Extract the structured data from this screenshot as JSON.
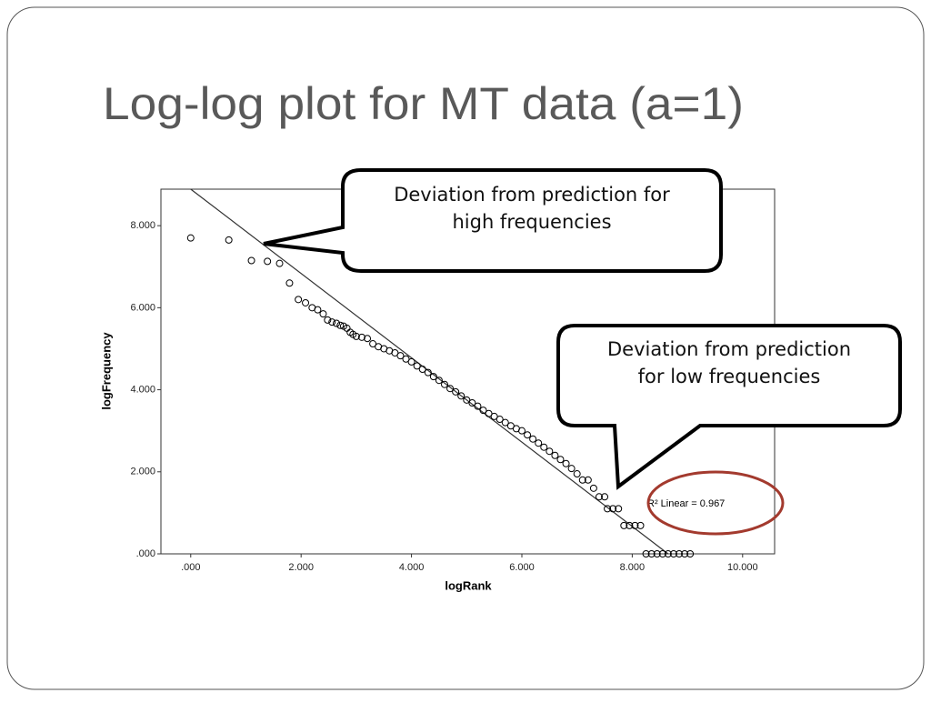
{
  "slide_title": "Log-log plot for MT data (a=1)",
  "callouts": [
    {
      "lines": [
        "Deviation from prediction for",
        "high frequencies"
      ]
    },
    {
      "lines": [
        "Deviation from prediction",
        "for low frequencies"
      ]
    }
  ],
  "chart_data": {
    "type": "scatter",
    "x_label": "logRank",
    "y_label": "logFrequency",
    "fit_label": "R² Linear = 0.967",
    "color": "#000000",
    "xlim": [
      -0.54,
      10.58
    ],
    "ylim": [
      0,
      8.89
    ],
    "xticks": [
      {
        "value": 0,
        "label": ".000"
      },
      {
        "value": 2,
        "label": "2.000"
      },
      {
        "value": 4,
        "label": "4.000"
      },
      {
        "value": 6,
        "label": "6.000"
      },
      {
        "value": 8,
        "label": "8.000"
      },
      {
        "value": 10,
        "label": "10.000"
      }
    ],
    "yticks": [
      {
        "value": 0,
        "label": ".000"
      },
      {
        "value": 2,
        "label": "2.000"
      },
      {
        "value": 4,
        "label": "4.000"
      },
      {
        "value": 6,
        "label": "6.000"
      },
      {
        "value": 8,
        "label": "8.000"
      }
    ],
    "fit_line": {
      "x": [
        0,
        8.65
      ],
      "y": [
        8.89,
        0
      ]
    },
    "x": [
      0,
      0.69,
      1.1,
      1.39,
      1.61,
      1.79,
      1.95,
      2.08,
      2.2,
      2.3,
      2.4,
      2.48,
      2.56,
      2.64,
      2.71,
      2.77,
      2.83,
      2.89,
      2.94,
      3.0,
      3.1,
      3.2,
      3.3,
      3.4,
      3.5,
      3.6,
      3.7,
      3.8,
      3.9,
      4.0,
      4.1,
      4.2,
      4.3,
      4.4,
      4.5,
      4.6,
      4.7,
      4.8,
      4.9,
      5.0,
      5.1,
      5.2,
      5.3,
      5.4,
      5.5,
      5.6,
      5.7,
      5.8,
      5.9,
      6.0,
      6.1,
      6.2,
      6.3,
      6.4,
      6.5,
      6.6,
      6.7,
      6.8,
      6.9,
      7.0,
      7.1,
      7.2,
      7.3,
      7.4,
      7.5,
      7.55,
      7.65,
      7.75,
      7.85,
      7.95,
      8.05,
      8.15,
      8.25,
      8.35,
      8.45,
      8.55,
      8.65,
      8.75,
      8.85,
      8.95,
      9.05
    ],
    "values": [
      7.7,
      7.65,
      7.15,
      7.13,
      7.08,
      6.6,
      6.2,
      6.12,
      6.0,
      5.95,
      5.85,
      5.7,
      5.65,
      5.62,
      5.57,
      5.55,
      5.5,
      5.4,
      5.35,
      5.3,
      5.28,
      5.25,
      5.12,
      5.05,
      5.0,
      4.95,
      4.9,
      4.83,
      4.75,
      4.68,
      4.58,
      4.5,
      4.42,
      4.32,
      4.23,
      4.13,
      4.03,
      3.95,
      3.85,
      3.75,
      3.68,
      3.6,
      3.5,
      3.42,
      3.35,
      3.28,
      3.2,
      3.12,
      3.05,
      3.0,
      2.9,
      2.8,
      2.7,
      2.6,
      2.5,
      2.4,
      2.3,
      2.2,
      2.08,
      1.95,
      1.8,
      1.8,
      1.6,
      1.39,
      1.39,
      1.1,
      1.1,
      1.1,
      0.69,
      0.69,
      0.69,
      0.69,
      0,
      0,
      0,
      0,
      0,
      0,
      0,
      0,
      0
    ]
  }
}
